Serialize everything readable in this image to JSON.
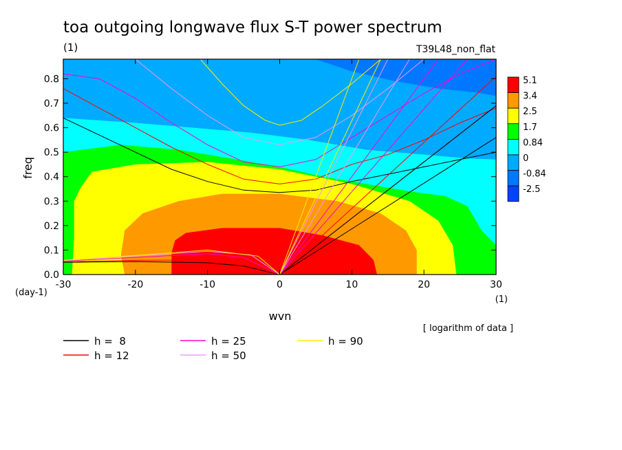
{
  "chart_data": {
    "type": "heatmap",
    "title": "toa outgoing longwave flux S-T power spectrum",
    "subtitle_left": "(1)",
    "subtitle_right": "T39L48_non_flat",
    "xlabel": "wvn",
    "ylabel": "freq",
    "x_unit": "(1)",
    "y_unit": "(day-1)",
    "xlim": [
      -30,
      30
    ],
    "ylim": [
      0,
      0.88
    ],
    "x_ticks": [
      -30,
      -20,
      -10,
      0,
      10,
      20,
      30
    ],
    "x_tick_labels": [
      "-30",
      "-20",
      "-10",
      "0",
      "10",
      "20",
      "30"
    ],
    "y_ticks": [
      0.0,
      0.1,
      0.2,
      0.3,
      0.4,
      0.5,
      0.6,
      0.7,
      0.8
    ],
    "y_tick_labels": [
      "0.0",
      "0.1",
      "0.2",
      "0.3",
      "0.4",
      "0.5",
      "0.6",
      "0.7",
      "0.8"
    ],
    "note": "[ logarithm of data ]",
    "colorbar": {
      "levels": [
        "5.1",
        "3.4",
        "2.5",
        "1.7",
        "0.84",
        "0",
        "-0.84",
        "-2.5"
      ],
      "colors": [
        "#ff0000",
        "#ff9900",
        "#ffff00",
        "#00ff00",
        "#00ffff",
        "#00aaff",
        "#0077ff",
        "#0044ff"
      ]
    },
    "fill_bands": [
      {
        "level": "-0.84",
        "color": "#0077ff",
        "bounds": [
          [
            -30,
            0.88
          ],
          [
            30,
            0.88
          ],
          [
            30,
            0.73
          ],
          [
            27,
            0.745
          ],
          [
            22,
            0.76
          ],
          [
            16,
            0.79
          ],
          [
            10,
            0.83
          ],
          [
            5,
            0.88
          ]
        ],
        "closed": true
      },
      {
        "level": "0",
        "color": "#00aaff",
        "top": [
          [
            -30,
            0.88
          ],
          [
            30,
            0.88
          ]
        ],
        "bottom": [
          [
            -30,
            0.64
          ],
          [
            -20,
            0.62
          ],
          [
            -12,
            0.6
          ],
          [
            -4,
            0.58
          ],
          [
            4,
            0.55
          ],
          [
            12,
            0.51
          ],
          [
            20,
            0.49
          ],
          [
            26,
            0.475
          ],
          [
            30,
            0.47
          ]
        ]
      },
      {
        "level": "0.84",
        "color": "#00ffff",
        "top": [
          [
            -30,
            0.64
          ],
          [
            -20,
            0.62
          ],
          [
            -12,
            0.6
          ],
          [
            -4,
            0.58
          ],
          [
            4,
            0.55
          ],
          [
            12,
            0.51
          ],
          [
            20,
            0.49
          ],
          [
            26,
            0.475
          ],
          [
            30,
            0.47
          ]
        ],
        "bottom": [
          [
            -30,
            0.5
          ],
          [
            -22,
            0.53
          ],
          [
            -14,
            0.51
          ],
          [
            -6,
            0.47
          ],
          [
            0,
            0.44
          ],
          [
            6,
            0.4
          ],
          [
            12,
            0.37
          ],
          [
            18,
            0.34
          ],
          [
            23,
            0.32
          ],
          [
            26,
            0.28
          ],
          [
            28,
            0.18
          ],
          [
            30,
            0.12
          ]
        ]
      },
      {
        "level": "1.7",
        "color": "#00ff00",
        "top": [
          [
            -30,
            0.5
          ],
          [
            -22,
            0.53
          ],
          [
            -14,
            0.51
          ],
          [
            -6,
            0.47
          ],
          [
            0,
            0.44
          ],
          [
            6,
            0.4
          ],
          [
            12,
            0.37
          ],
          [
            18,
            0.34
          ],
          [
            23,
            0.32
          ],
          [
            26,
            0.28
          ],
          [
            28,
            0.18
          ],
          [
            30,
            0.12
          ]
        ],
        "bottom": [
          [
            -30,
            0.0
          ],
          [
            24.5,
            0.0
          ],
          [
            24,
            0.12
          ],
          [
            22,
            0.22
          ],
          [
            18,
            0.3
          ],
          [
            10,
            0.37
          ],
          [
            0,
            0.43
          ],
          [
            -10,
            0.46
          ],
          [
            -20,
            0.45
          ],
          [
            -26,
            0.42
          ],
          [
            -27.5,
            0.36
          ],
          [
            -28.5,
            0.3
          ],
          [
            -28.5,
            0.15
          ],
          [
            -28.8,
            0.0
          ]
        ],
        "mode": "region"
      },
      {
        "level": "2.5",
        "color": "#ffff00",
        "outline": [
          [
            -28.8,
            0.0
          ],
          [
            -28.5,
            0.15
          ],
          [
            -28.5,
            0.3
          ],
          [
            -27.5,
            0.36
          ],
          [
            -26,
            0.42
          ],
          [
            -20,
            0.45
          ],
          [
            -10,
            0.46
          ],
          [
            0,
            0.43
          ],
          [
            10,
            0.37
          ],
          [
            18,
            0.3
          ],
          [
            22,
            0.22
          ],
          [
            24,
            0.12
          ],
          [
            24.5,
            0.0
          ]
        ]
      },
      {
        "level": "3.4",
        "color": "#ff9900",
        "outline": [
          [
            -21.5,
            0.0
          ],
          [
            -22,
            0.08
          ],
          [
            -21.5,
            0.18
          ],
          [
            -19,
            0.25
          ],
          [
            -14,
            0.3
          ],
          [
            -8,
            0.33
          ],
          [
            0,
            0.33
          ],
          [
            8,
            0.3
          ],
          [
            14,
            0.25
          ],
          [
            17.5,
            0.18
          ],
          [
            19,
            0.1
          ],
          [
            19,
            0.0
          ]
        ]
      },
      {
        "level": "5.1",
        "color": "#ff0000",
        "outline": [
          [
            -15,
            0.0
          ],
          [
            -15,
            0.09
          ],
          [
            -14.5,
            0.14
          ],
          [
            -13,
            0.17
          ],
          [
            -8,
            0.19
          ],
          [
            0,
            0.19
          ],
          [
            6,
            0.16
          ],
          [
            11,
            0.12
          ],
          [
            13,
            0.06
          ],
          [
            13.5,
            0.0
          ]
        ]
      }
    ],
    "legend": [
      {
        "label": "h =  8",
        "color": "#000000"
      },
      {
        "label": "h = 12",
        "color": "#ff0000"
      },
      {
        "label": "h = 25",
        "color": "#ff00cc"
      },
      {
        "label": "h = 50",
        "color": "#ee99ff"
      },
      {
        "label": "h = 90",
        "color": "#ffee00"
      }
    ],
    "dispersion_curves": [
      {
        "name": "h8-eig",
        "color": "#000000",
        "points": [
          [
            -30,
            0.64
          ],
          [
            -25,
            0.57
          ],
          [
            -20,
            0.5
          ],
          [
            -15,
            0.43
          ],
          [
            -10,
            0.38
          ],
          [
            -5,
            0.345
          ],
          [
            0,
            0.335
          ],
          [
            5,
            0.345
          ],
          [
            10,
            0.38
          ],
          [
            15,
            0.41
          ],
          [
            20,
            0.44
          ],
          [
            25,
            0.47
          ],
          [
            30,
            0.5
          ]
        ]
      },
      {
        "name": "h12-eig",
        "color": "#ff0000",
        "points": [
          [
            -30,
            0.76
          ],
          [
            -25,
            0.68
          ],
          [
            -20,
            0.6
          ],
          [
            -15,
            0.52
          ],
          [
            -10,
            0.45
          ],
          [
            -5,
            0.39
          ],
          [
            0,
            0.37
          ],
          [
            5,
            0.39
          ],
          [
            10,
            0.45
          ],
          [
            15,
            0.49
          ],
          [
            20,
            0.55
          ],
          [
            25,
            0.62
          ],
          [
            30,
            0.68
          ]
        ]
      },
      {
        "name": "h25-eig",
        "color": "#ff00cc",
        "points": [
          [
            -30,
            0.82
          ],
          [
            -25,
            0.8
          ],
          [
            -20,
            0.72
          ],
          [
            -15,
            0.62
          ],
          [
            -10,
            0.53
          ],
          [
            -5,
            0.46
          ],
          [
            0,
            0.44
          ],
          [
            5,
            0.47
          ],
          [
            10,
            0.56
          ],
          [
            15,
            0.65
          ],
          [
            20,
            0.74
          ],
          [
            25,
            0.82
          ],
          [
            30,
            0.88
          ]
        ]
      },
      {
        "name": "h50-eig",
        "color": "#ee99ff",
        "points": [
          [
            -20,
            0.88
          ],
          [
            -15,
            0.76
          ],
          [
            -10,
            0.65
          ],
          [
            -5,
            0.56
          ],
          [
            0,
            0.53
          ],
          [
            5,
            0.56
          ],
          [
            10,
            0.65
          ],
          [
            15,
            0.76
          ],
          [
            20,
            0.88
          ]
        ]
      },
      {
        "name": "h90-eig",
        "color": "#ffee00",
        "points": [
          [
            -11,
            0.88
          ],
          [
            -8,
            0.78
          ],
          [
            -5,
            0.69
          ],
          [
            -2,
            0.63
          ],
          [
            0,
            0.61
          ],
          [
            3,
            0.63
          ],
          [
            6,
            0.69
          ],
          [
            10,
            0.78
          ],
          [
            14,
            0.88
          ]
        ]
      },
      {
        "name": "h8-kelvin",
        "color": "#000000",
        "points": [
          [
            0,
            0
          ],
          [
            30,
            0.56
          ]
        ]
      },
      {
        "name": "h12-kelvin",
        "color": "#ff0000",
        "points": [
          [
            0,
            0
          ],
          [
            30,
            0.69
          ]
        ]
      },
      {
        "name": "h25-kelvin",
        "color": "#ff00cc",
        "points": [
          [
            0,
            0
          ],
          [
            22,
            0.88
          ]
        ]
      },
      {
        "name": "h50-kelvin",
        "color": "#ee99ff",
        "points": [
          [
            0,
            0
          ],
          [
            15,
            0.88
          ]
        ]
      },
      {
        "name": "h90-kelvin",
        "color": "#ffee00",
        "points": [
          [
            0,
            0
          ],
          [
            11,
            0.88
          ]
        ]
      },
      {
        "name": "h8-mrg",
        "color": "#000000",
        "points": [
          [
            0,
            0
          ],
          [
            30,
            0.69
          ]
        ]
      },
      {
        "name": "h12-mrg",
        "color": "#ff0000",
        "points": [
          [
            0,
            0
          ],
          [
            30,
            0.81
          ]
        ]
      },
      {
        "name": "h25-mrg",
        "color": "#ff00cc",
        "points": [
          [
            0,
            0
          ],
          [
            26,
            0.88
          ]
        ]
      },
      {
        "name": "h50-mrg",
        "color": "#ee99ff",
        "points": [
          [
            0,
            0
          ],
          [
            18,
            0.88
          ]
        ]
      },
      {
        "name": "h90-mrg",
        "color": "#ffee00",
        "points": [
          [
            0,
            0
          ],
          [
            14,
            0.88
          ]
        ]
      },
      {
        "name": "h8-rossby",
        "color": "#000000",
        "points": [
          [
            -30,
            0.05
          ],
          [
            -20,
            0.053
          ],
          [
            -10,
            0.048
          ],
          [
            -5,
            0.035
          ],
          [
            0,
            0
          ]
        ]
      },
      {
        "name": "h12-rossby",
        "color": "#ff0000",
        "points": [
          [
            -30,
            0.052
          ],
          [
            -20,
            0.058
          ],
          [
            -10,
            0.06
          ],
          [
            -5,
            0.045
          ],
          [
            0,
            0
          ]
        ]
      },
      {
        "name": "h25-rossby",
        "color": "#ff00cc",
        "points": [
          [
            -30,
            0.055
          ],
          [
            -20,
            0.07
          ],
          [
            -10,
            0.085
          ],
          [
            -5,
            0.07
          ],
          [
            0,
            0
          ]
        ]
      },
      {
        "name": "h50-rossby",
        "color": "#ee99ff",
        "points": [
          [
            -30,
            0.057
          ],
          [
            -20,
            0.075
          ],
          [
            -10,
            0.095
          ],
          [
            -4,
            0.08
          ],
          [
            0,
            0
          ]
        ]
      },
      {
        "name": "h90-rossby",
        "color": "#ffee00",
        "points": [
          [
            -30,
            0.058
          ],
          [
            -20,
            0.078
          ],
          [
            -10,
            0.1
          ],
          [
            -3,
            0.075
          ],
          [
            0,
            0
          ]
        ]
      }
    ]
  }
}
